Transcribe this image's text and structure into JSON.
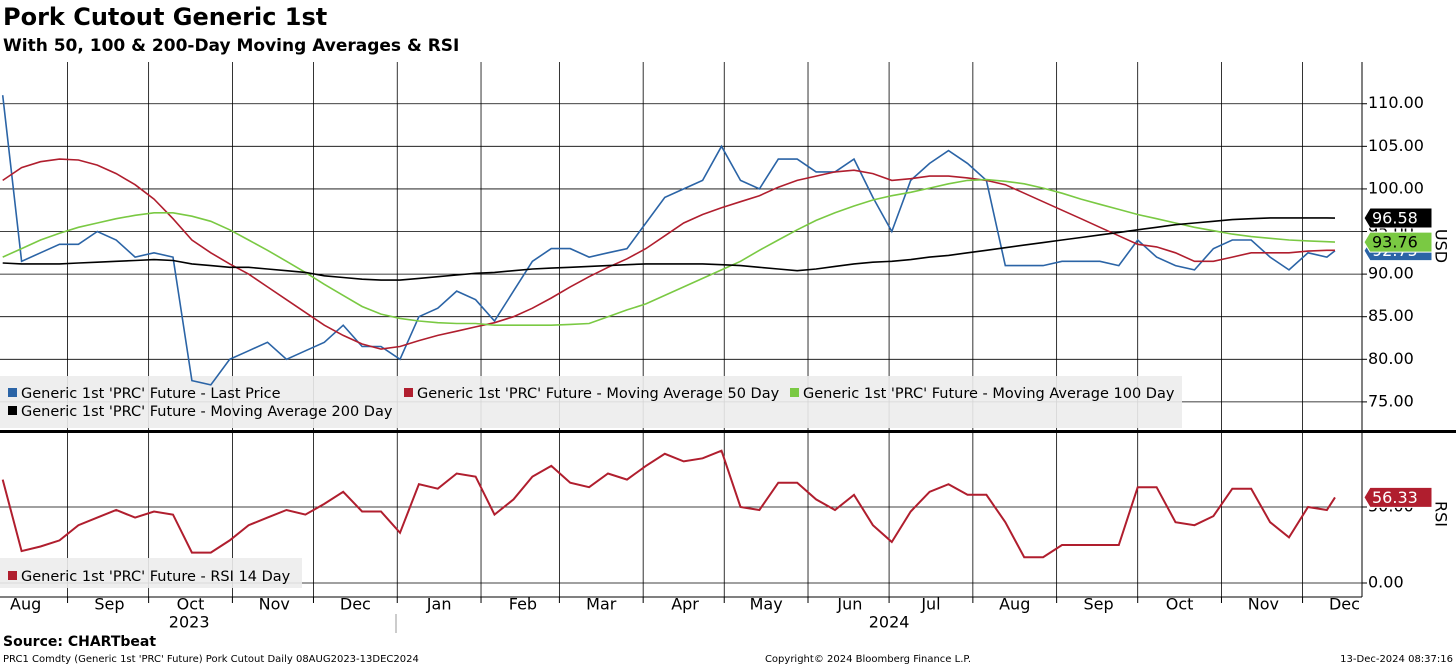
{
  "chart_data": {
    "type": "line",
    "title": "Pork Cutout Generic 1st",
    "subtitle": "With 50, 100 & 200-Day Moving Averages & RSI",
    "ylabel": "USD",
    "x": [
      "2023-08-08",
      "2023-08-15",
      "2023-08-22",
      "2023-08-29",
      "2023-09-05",
      "2023-09-12",
      "2023-09-19",
      "2023-09-26",
      "2023-10-03",
      "2023-10-10",
      "2023-10-17",
      "2023-10-24",
      "2023-10-31",
      "2023-11-07",
      "2023-11-14",
      "2023-11-21",
      "2023-11-28",
      "2023-12-05",
      "2023-12-12",
      "2023-12-19",
      "2023-12-26",
      "2024-01-02",
      "2024-01-09",
      "2024-01-16",
      "2024-01-23",
      "2024-01-30",
      "2024-02-06",
      "2024-02-13",
      "2024-02-20",
      "2024-02-27",
      "2024-03-05",
      "2024-03-12",
      "2024-03-19",
      "2024-03-26",
      "2024-04-02",
      "2024-04-09",
      "2024-04-16",
      "2024-04-23",
      "2024-04-30",
      "2024-05-07",
      "2024-05-14",
      "2024-05-21",
      "2024-05-28",
      "2024-06-04",
      "2024-06-11",
      "2024-06-18",
      "2024-06-25",
      "2024-07-02",
      "2024-07-09",
      "2024-07-16",
      "2024-07-23",
      "2024-07-30",
      "2024-08-06",
      "2024-08-13",
      "2024-08-20",
      "2024-08-27",
      "2024-09-03",
      "2024-09-10",
      "2024-09-17",
      "2024-09-24",
      "2024-10-01",
      "2024-10-08",
      "2024-10-15",
      "2024-10-22",
      "2024-10-29",
      "2024-11-05",
      "2024-11-12",
      "2024-11-19",
      "2024-11-26",
      "2024-12-03",
      "2024-12-10",
      "2024-12-13"
    ],
    "xlim": [
      "2023-08-07",
      "2024-12-23"
    ],
    "xticks": [
      {
        "value": "2023-08-01",
        "label": "Aug"
      },
      {
        "value": "2023-09-01",
        "label": "Sep"
      },
      {
        "value": "2023-10-01",
        "label": "Oct"
      },
      {
        "value": "2023-11-01",
        "label": "Nov"
      },
      {
        "value": "2023-12-01",
        "label": "Dec"
      },
      {
        "value": "2024-01-01",
        "label": "Jan"
      },
      {
        "value": "2024-02-01",
        "label": "Feb"
      },
      {
        "value": "2024-03-01",
        "label": "Mar"
      },
      {
        "value": "2024-04-01",
        "label": "Apr"
      },
      {
        "value": "2024-05-01",
        "label": "May"
      },
      {
        "value": "2024-06-01",
        "label": "Jun"
      },
      {
        "value": "2024-07-01",
        "label": "Jul"
      },
      {
        "value": "2024-08-01",
        "label": "Aug"
      },
      {
        "value": "2024-09-01",
        "label": "Sep"
      },
      {
        "value": "2024-10-01",
        "label": "Oct"
      },
      {
        "value": "2024-11-01",
        "label": "Nov"
      },
      {
        "value": "2024-12-01",
        "label": "Dec"
      }
    ],
    "year_ticks": [
      {
        "value": "2023-10-16",
        "label": "2023"
      },
      {
        "value": "2024-07-01",
        "label": "2024"
      }
    ],
    "ylim": [
      71.7,
      114.9
    ],
    "yticks": [
      {
        "value": 75,
        "label": "75.00"
      },
      {
        "value": 80,
        "label": "80.00"
      },
      {
        "value": 85,
        "label": "85.00"
      },
      {
        "value": 90,
        "label": "90.00"
      },
      {
        "value": 95,
        "label": "95.00"
      },
      {
        "value": 100,
        "label": "100.00"
      },
      {
        "value": 105,
        "label": "105.00"
      },
      {
        "value": 110,
        "label": "110.00"
      }
    ],
    "rsi_panel": {
      "ylabel": "RSI",
      "ylim": [
        -9.2,
        98
      ],
      "yticks": [
        {
          "value": 0,
          "label": "0.00"
        },
        {
          "value": 50,
          "label": "50.00"
        }
      ]
    },
    "grid": true,
    "series": [
      {
        "name": "Generic 1st 'PRC' Future - Last Price",
        "color": "#2b64a6",
        "axis": "price",
        "end_label": true,
        "values": [
          111,
          91.5,
          92.5,
          93.5,
          93.5,
          95,
          94,
          92,
          92.5,
          92,
          77.5,
          77,
          80,
          81,
          82,
          80,
          81,
          82,
          84,
          81.5,
          81.5,
          80,
          85,
          86,
          88,
          87,
          84.5,
          88,
          91.5,
          93,
          93,
          92,
          92.5,
          93,
          96,
          99,
          100,
          101,
          105,
          101,
          100,
          103.5,
          103.5,
          102,
          102,
          103.5,
          99,
          95,
          101,
          103,
          104.5,
          103,
          101,
          91,
          91,
          91,
          91.5,
          91.5,
          91.5,
          91,
          94,
          92,
          91,
          90.5,
          93,
          94,
          94,
          92,
          90.5,
          92.5,
          92,
          92.75
        ]
      },
      {
        "name": "Generic 1st 'PRC' Future - Moving Average 50 Day",
        "color": "#b01e2e",
        "axis": "price",
        "end_label": false,
        "values": [
          101,
          102.5,
          103.2,
          103.5,
          103.4,
          102.8,
          101.8,
          100.5,
          98.8,
          96.5,
          94,
          92.5,
          91.2,
          90,
          88.5,
          87,
          85.5,
          84,
          82.8,
          81.8,
          81.2,
          81.5,
          82.2,
          82.8,
          83.3,
          83.8,
          84.3,
          85,
          86,
          87.2,
          88.5,
          89.7,
          90.8,
          91.8,
          93,
          94.5,
          96,
          97,
          97.8,
          98.5,
          99.2,
          100.2,
          101,
          101.5,
          102,
          102.2,
          101.8,
          101,
          101.2,
          101.5,
          101.5,
          101.3,
          101,
          100.5,
          99.5,
          98.5,
          97.5,
          96.5,
          95.5,
          94.5,
          93.5,
          93.2,
          92.5,
          91.5,
          91.5,
          92,
          92.5,
          92.5,
          92.5,
          92.7,
          92.8,
          92.8
        ]
      },
      {
        "name": "Generic 1st 'PRC' Future - Moving Average 100 Day",
        "color": "#7ac943",
        "axis": "price",
        "end_label": true,
        "values": [
          92,
          93,
          94,
          94.8,
          95.5,
          96,
          96.5,
          96.9,
          97.2,
          97.2,
          96.8,
          96.2,
          95.2,
          94,
          92.8,
          91.5,
          90.2,
          88.8,
          87.5,
          86.2,
          85.3,
          84.8,
          84.5,
          84.3,
          84.2,
          84.2,
          84,
          84,
          84,
          84,
          84.1,
          84.2,
          85,
          85.8,
          86.5,
          87.5,
          88.5,
          89.5,
          90.5,
          91.5,
          92.8,
          94,
          95.2,
          96.3,
          97.2,
          98,
          98.7,
          99.2,
          99.6,
          100.1,
          100.6,
          101,
          101.1,
          100.9,
          100.6,
          100.1,
          99.5,
          98.8,
          98.2,
          97.6,
          97,
          96.5,
          96,
          95.5,
          95.1,
          94.7,
          94.4,
          94.2,
          94,
          93.9,
          93.8,
          93.76
        ]
      },
      {
        "name": "Generic 1st 'PRC' Future - Moving Average 200 Day",
        "color": "#000000",
        "axis": "price",
        "end_label": true,
        "values": [
          91.3,
          91.2,
          91.2,
          91.2,
          91.3,
          91.4,
          91.5,
          91.6,
          91.7,
          91.6,
          91.2,
          91,
          90.8,
          90.8,
          90.6,
          90.4,
          90.2,
          89.8,
          89.6,
          89.4,
          89.3,
          89.3,
          89.5,
          89.7,
          89.9,
          90.1,
          90.2,
          90.4,
          90.6,
          90.7,
          90.8,
          90.9,
          91,
          91.1,
          91.2,
          91.2,
          91.2,
          91.2,
          91.1,
          91,
          90.8,
          90.6,
          90.4,
          90.6,
          90.9,
          91.2,
          91.4,
          91.5,
          91.7,
          92,
          92.2,
          92.5,
          92.8,
          93.1,
          93.4,
          93.7,
          94,
          94.3,
          94.6,
          94.9,
          95.2,
          95.5,
          95.8,
          96,
          96.2,
          96.4,
          96.5,
          96.6,
          96.6,
          96.6,
          96.6,
          96.58
        ]
      },
      {
        "name": "Generic 1st 'PRC' Future - RSI 14 Day",
        "color": "#b01e2e",
        "axis": "rsi",
        "end_label": true,
        "values": [
          68,
          21,
          24,
          28,
          38,
          43,
          48,
          43,
          47,
          45,
          20,
          20,
          28,
          38,
          43,
          48,
          45,
          52,
          60,
          47,
          47,
          33,
          65,
          62,
          72,
          70,
          45,
          55,
          70,
          77,
          66,
          63,
          72,
          68,
          77,
          85,
          80,
          82,
          87,
          50,
          48,
          66,
          66,
          55,
          48,
          58,
          38,
          27,
          47,
          60,
          65,
          58,
          58,
          40,
          17,
          17,
          25,
          25,
          25,
          25,
          63,
          63,
          40,
          38,
          44,
          62,
          62,
          40,
          30,
          50,
          48,
          56.33
        ]
      }
    ],
    "source": "Source: CHARTbeat",
    "footer_left": "PRC1 Comdty (Generic 1st 'PRC' Future) Pork Cutout  Daily 08AUG2023-13DEC2024",
    "footer_center": "Copyright© 2024 Bloomberg Finance L.P.",
    "footer_right": "13-Dec-2024 08:37:16"
  }
}
